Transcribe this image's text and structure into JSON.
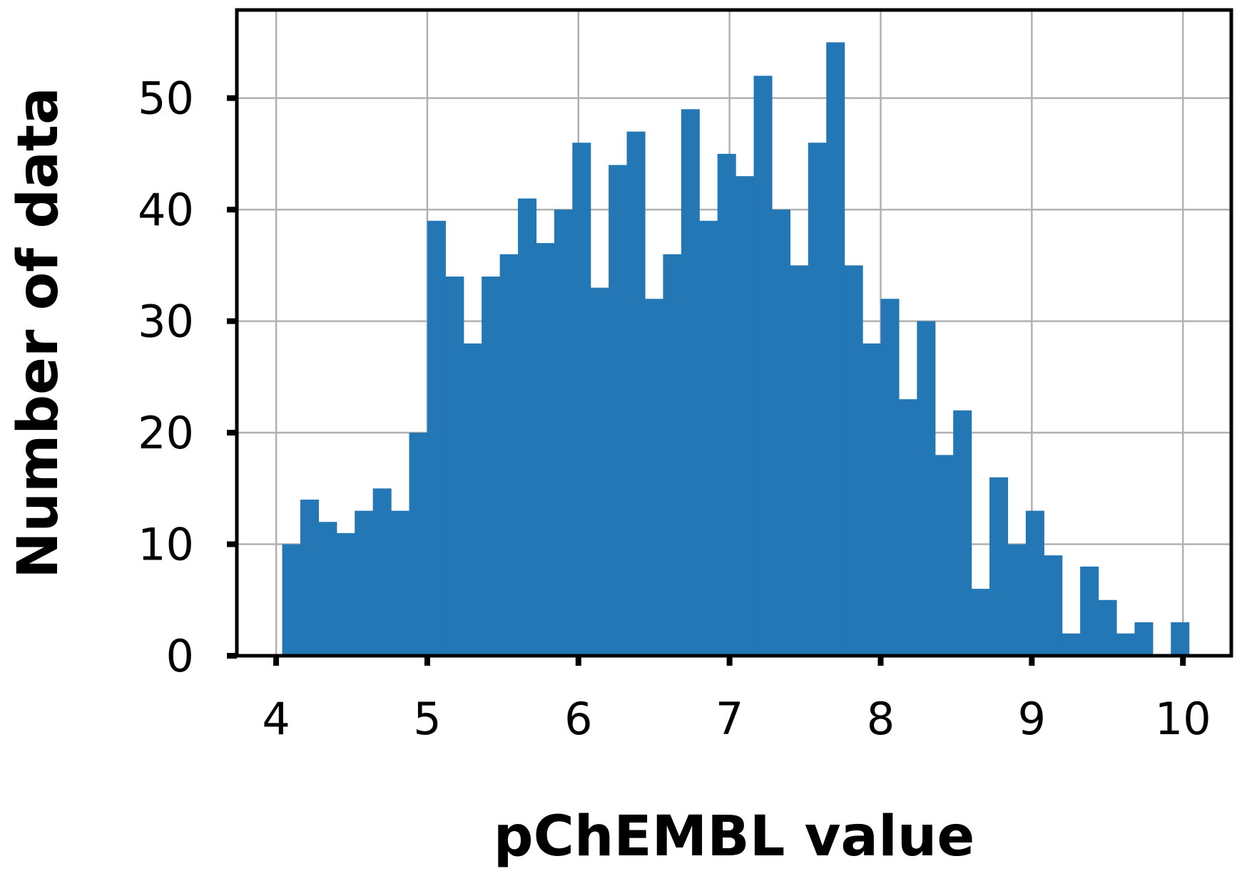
{
  "chart_data": {
    "type": "bar",
    "title": "",
    "xlabel": "pChEMBL value",
    "ylabel": "Number of data",
    "xlim": [
      3.74,
      10.32
    ],
    "ylim": [
      0,
      57.9
    ],
    "xticks": [
      4,
      5,
      6,
      7,
      8,
      9,
      10
    ],
    "yticks": [
      0,
      10,
      20,
      30,
      40,
      50
    ],
    "grid": true,
    "legend": "none",
    "bar_color": "#2277b4",
    "bin_edges": [
      4.04,
      4.16,
      4.28,
      4.4,
      4.52,
      4.64,
      4.76,
      4.88,
      5.0,
      5.12,
      5.24,
      5.36,
      5.48,
      5.6,
      5.72,
      5.84,
      5.96,
      6.08,
      6.2,
      6.32,
      6.44,
      6.56,
      6.68,
      6.8,
      6.92,
      7.04,
      7.16,
      7.28,
      7.4,
      7.52,
      7.64,
      7.76,
      7.88,
      8.0,
      8.12,
      8.24,
      8.36,
      8.48,
      8.6,
      8.72,
      8.84,
      8.96,
      9.08,
      9.2,
      9.32,
      9.44,
      9.56,
      9.68,
      9.8,
      9.92,
      10.04
    ],
    "values": [
      10,
      14,
      12,
      11,
      13,
      15,
      13,
      20,
      39,
      34,
      28,
      34,
      36,
      41,
      37,
      40,
      46,
      33,
      44,
      47,
      32,
      36,
      49,
      39,
      45,
      43,
      52,
      40,
      35,
      46,
      55,
      35,
      28,
      32,
      23,
      30,
      18,
      22,
      6,
      16,
      10,
      13,
      9,
      2,
      8,
      5,
      2,
      3,
      0,
      3
    ]
  }
}
